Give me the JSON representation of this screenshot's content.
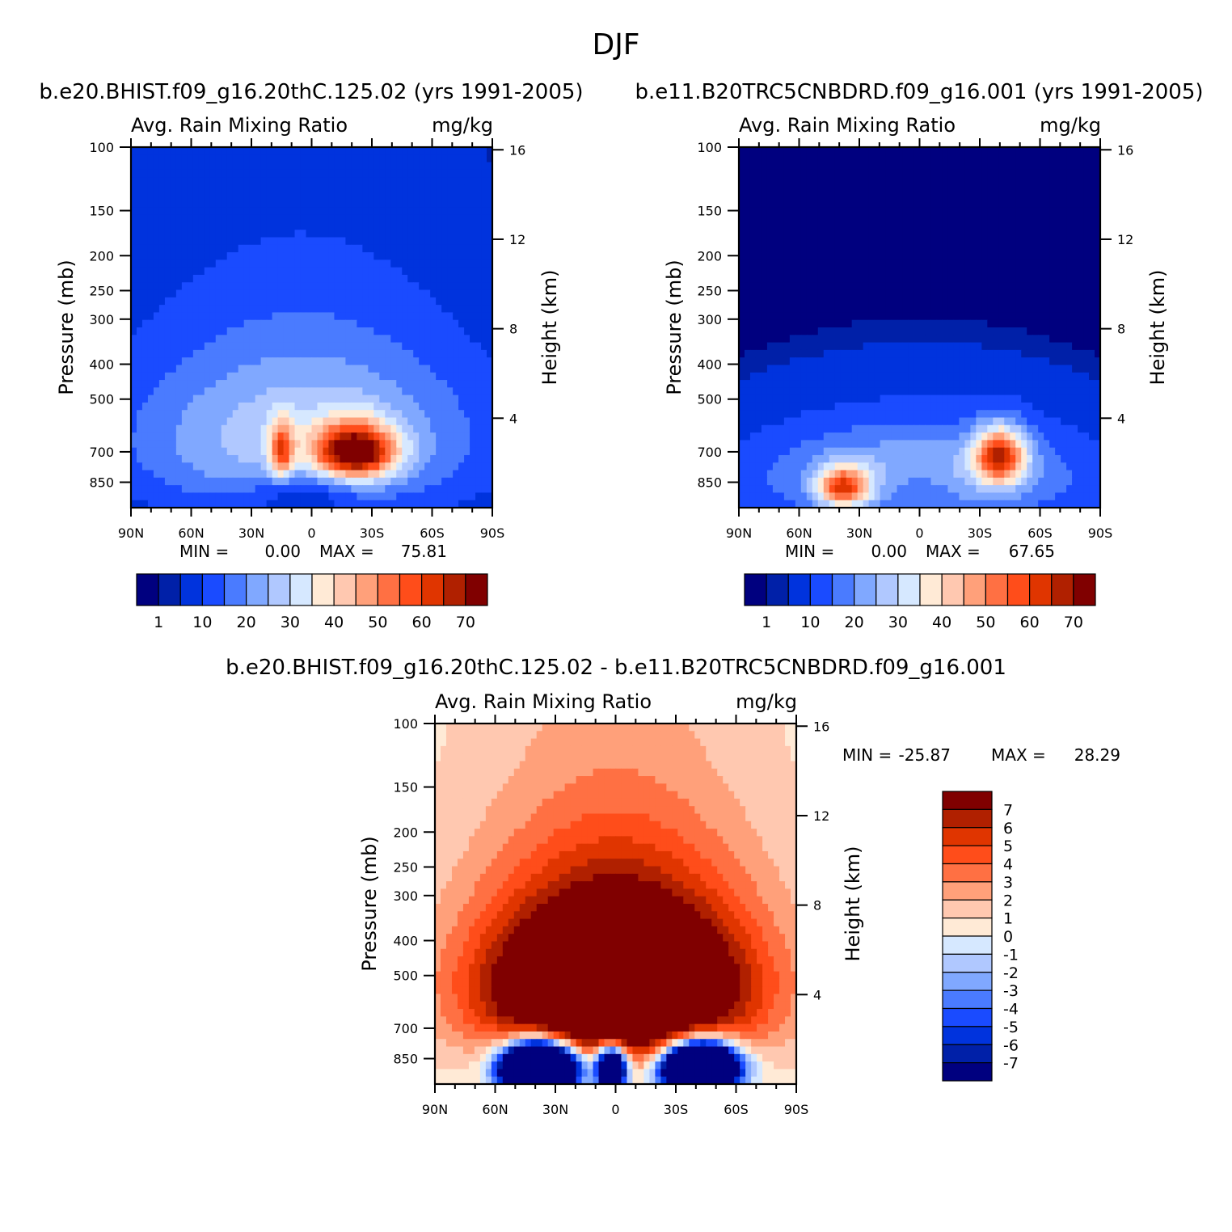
{
  "figure": {
    "title": "DJF"
  },
  "colors": {
    "sequential": [
      "#00007f",
      "#0020a8",
      "#0033dd",
      "#1a4bff",
      "#4a7bff",
      "#80a8ff",
      "#b0c8ff",
      "#d6e8ff",
      "#ffead6",
      "#ffc8b0",
      "#ffa07a",
      "#ff7043",
      "#ff4d1a",
      "#e03500",
      "#b02000",
      "#800000"
    ],
    "diverging": [
      "#00007f",
      "#0020a8",
      "#0033dd",
      "#1a4bff",
      "#4a7bff",
      "#80a8ff",
      "#b0c8ff",
      "#d6e8ff",
      "#ffead6",
      "#ffc8b0",
      "#ffa07a",
      "#ff7043",
      "#ff4d1a",
      "#e03500",
      "#b02000",
      "#800000"
    ]
  },
  "chart_data": [
    {
      "type": "heatmap",
      "case_title": "b.e20.BHIST.f09_g16.20thC.125.02 (yrs 1991-2005)",
      "variable": "Avg. Rain Mixing Ratio",
      "units": "mg/kg",
      "ylabel": "Pressure (mb)",
      "ylabel_right": "Height (km)",
      "x_ticks": [
        "90N",
        "60N",
        "30N",
        "0",
        "30S",
        "60S",
        "90S"
      ],
      "x_range_deg": [
        90,
        -90
      ],
      "y_ticks_pressure": [
        "100",
        "150",
        "200",
        "250",
        "300",
        "400",
        "500",
        "700",
        "850"
      ],
      "y_ticks_height": [
        "16",
        "12",
        "8",
        "4"
      ],
      "y_range_mb": [
        100,
        1000
      ],
      "min_label": "MIN =",
      "min_value": "0.00",
      "max_label": "MAX =",
      "max_value": "75.81",
      "colorbar_labels": [
        "1",
        "10",
        "20",
        "30",
        "40",
        "50",
        "60",
        "70"
      ],
      "levels": [
        0.5,
        1,
        5,
        10,
        15,
        20,
        25,
        30,
        35,
        40,
        45,
        50,
        55,
        60,
        65,
        70
      ],
      "field": {
        "background": 0,
        "blobs": [
          {
            "lat": 5,
            "p": 640,
            "slat": 62,
            "sp": 260,
            "amp": 25
          },
          {
            "lat": -22,
            "p": 700,
            "slat": 14,
            "sp": 85,
            "amp": 58
          },
          {
            "lat": 15,
            "p": 700,
            "slat": 4,
            "sp": 90,
            "amp": 34
          },
          {
            "lat": 5,
            "p": 900,
            "slat": 18,
            "sp": 90,
            "amp": -12
          }
        ]
      }
    },
    {
      "type": "heatmap",
      "case_title": "b.e11.B20TRC5CNBDRD.f09_g16.001 (yrs 1991-2005)",
      "variable": "Avg. Rain Mixing Ratio",
      "units": "mg/kg",
      "ylabel": "Pressure (mb)",
      "ylabel_right": "Height (km)",
      "x_ticks": [
        "90N",
        "60N",
        "30N",
        "0",
        "30S",
        "60S",
        "90S"
      ],
      "x_range_deg": [
        90,
        -90
      ],
      "y_ticks_pressure": [
        "100",
        "150",
        "200",
        "250",
        "300",
        "400",
        "500",
        "700",
        "850"
      ],
      "y_ticks_height": [
        "16",
        "12",
        "8",
        "4"
      ],
      "y_range_mb": [
        100,
        1000
      ],
      "min_label": "MIN =",
      "min_value": "0.00",
      "max_label": "MAX =",
      "max_value": "67.65",
      "colorbar_labels": [
        "1",
        "10",
        "20",
        "30",
        "40",
        "50",
        "60",
        "70"
      ],
      "levels": [
        0.5,
        1,
        5,
        10,
        15,
        20,
        25,
        30,
        35,
        40,
        45,
        50,
        55,
        60,
        65,
        70
      ],
      "field": {
        "background": 0,
        "blobs": [
          {
            "lat": 0,
            "p": 820,
            "slat": 60,
            "sp": 190,
            "amp": 22
          },
          {
            "lat": -40,
            "p": 720,
            "slat": 9,
            "sp": 90,
            "amp": 48
          },
          {
            "lat": 38,
            "p": 880,
            "slat": 9,
            "sp": 80,
            "amp": 42
          },
          {
            "lat": 0,
            "p": 880,
            "slat": 15,
            "sp": 80,
            "amp": -8
          }
        ]
      }
    },
    {
      "type": "heatmap",
      "case_title": "b.e20.BHIST.f09_g16.20thC.125.02 - b.e11.B20TRC5CNBDRD.f09_g16.001",
      "variable": "Avg. Rain Mixing Ratio",
      "units": "mg/kg",
      "ylabel": "Pressure (mb)",
      "ylabel_right": "Height (km)",
      "x_ticks": [
        "90N",
        "60N",
        "30N",
        "0",
        "30S",
        "60S",
        "90S"
      ],
      "x_range_deg": [
        90,
        -90
      ],
      "y_ticks_pressure": [
        "100",
        "150",
        "200",
        "250",
        "300",
        "400",
        "500",
        "700",
        "850"
      ],
      "y_ticks_height": [
        "16",
        "12",
        "8",
        "4"
      ],
      "y_range_mb": [
        100,
        1000
      ],
      "min_label": "MIN =",
      "min_value": "-25.87",
      "max_label": "MAX =",
      "max_value": "28.29",
      "colorbar_labels": [
        "7",
        "6",
        "5",
        "4",
        "3",
        "2",
        "1",
        "0",
        "-1",
        "-2",
        "-3",
        "-4",
        "-5",
        "-6",
        "-7"
      ],
      "levels": [
        -7,
        -6,
        -5,
        -4,
        -3,
        -2,
        -1,
        0,
        1,
        2,
        3,
        4,
        5,
        6,
        7
      ],
      "field": {
        "background": 0.5,
        "blobs": [
          {
            "lat": 0,
            "p": 560,
            "slat": 44,
            "sp": 190,
            "amp": 14
          },
          {
            "lat": 0,
            "p": 420,
            "slat": 55,
            "sp": 230,
            "amp": 3
          },
          {
            "lat": 38,
            "p": 900,
            "slat": 12,
            "sp": 90,
            "amp": -35
          },
          {
            "lat": -42,
            "p": 900,
            "slat": 12,
            "sp": 90,
            "amp": -33
          },
          {
            "lat": 2,
            "p": 900,
            "slat": 5,
            "sp": 85,
            "amp": -20
          }
        ]
      }
    }
  ]
}
